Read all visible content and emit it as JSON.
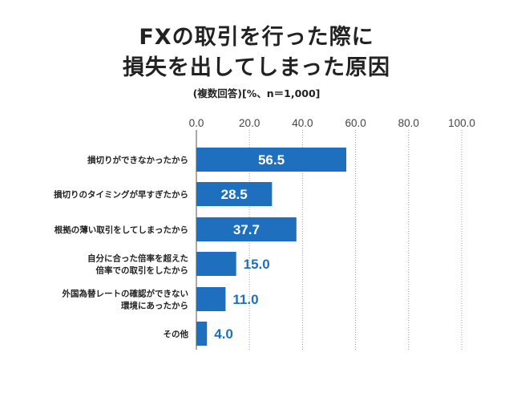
{
  "title_line1": "FXの取引を行った際に",
  "title_line2": "損失を出してしまった原因",
  "subtitle": "(複数回答)[%、n＝1,000]",
  "colors": {
    "bar": "#1f6fbf",
    "grid": "#9a9a9a",
    "label_inside": "#ffffff",
    "label_outside": "#1f6fbf"
  },
  "chart_data": {
    "type": "bar",
    "orientation": "horizontal",
    "categories": [
      [
        "損切りができなかったから"
      ],
      [
        "損切りのタイミングが早すぎたから"
      ],
      [
        "根拠の薄い取引をしてしまったから"
      ],
      [
        "自分に合った倍率を超えた",
        "倍率での取引をしたから"
      ],
      [
        "外国為替レートの確認ができない",
        "環境にあったから"
      ],
      [
        "その他"
      ]
    ],
    "values": [
      56.5,
      28.5,
      37.7,
      15.0,
      11.0,
      4.0
    ],
    "value_labels": [
      "56.5",
      "28.5",
      "37.7",
      "15.0",
      "11.0",
      "4.0"
    ],
    "xlim": [
      0,
      100
    ],
    "xticks": [
      0,
      20,
      40,
      60,
      80,
      100
    ],
    "xtick_labels": [
      "0.0",
      "20.0",
      "40.0",
      "60.0",
      "80.0",
      "100.0"
    ],
    "grid": true
  }
}
